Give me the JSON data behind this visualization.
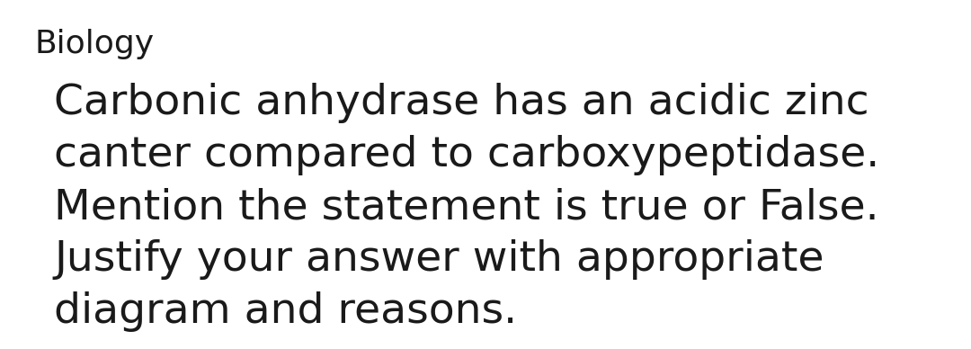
{
  "background_color": "#ffffff",
  "header_text": "Biology",
  "header_fontsize": 26,
  "header_fontweight": "normal",
  "header_color": "#1a1a1a",
  "body_lines": [
    "Carbonic anhydrase has an acidic zinc",
    "canter compared to carboxypeptidase.",
    "Mention the statement is true or False.",
    "Justify your answer with appropriate",
    "diagram and reasons."
  ],
  "body_fontsize": 34,
  "body_color": "#1a1a1a",
  "fig_width": 10.8,
  "fig_height": 3.88,
  "dpi": 100
}
